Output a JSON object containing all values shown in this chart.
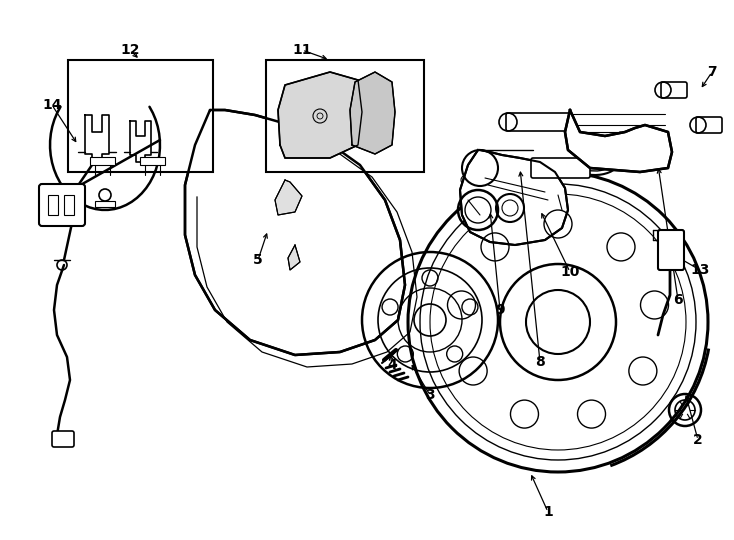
{
  "bg_color": "#ffffff",
  "lc": "#000000",
  "fig_w": 7.34,
  "fig_h": 5.4,
  "dpi": 100,
  "xlim": [
    0,
    734
  ],
  "ylim": [
    0,
    540
  ]
}
